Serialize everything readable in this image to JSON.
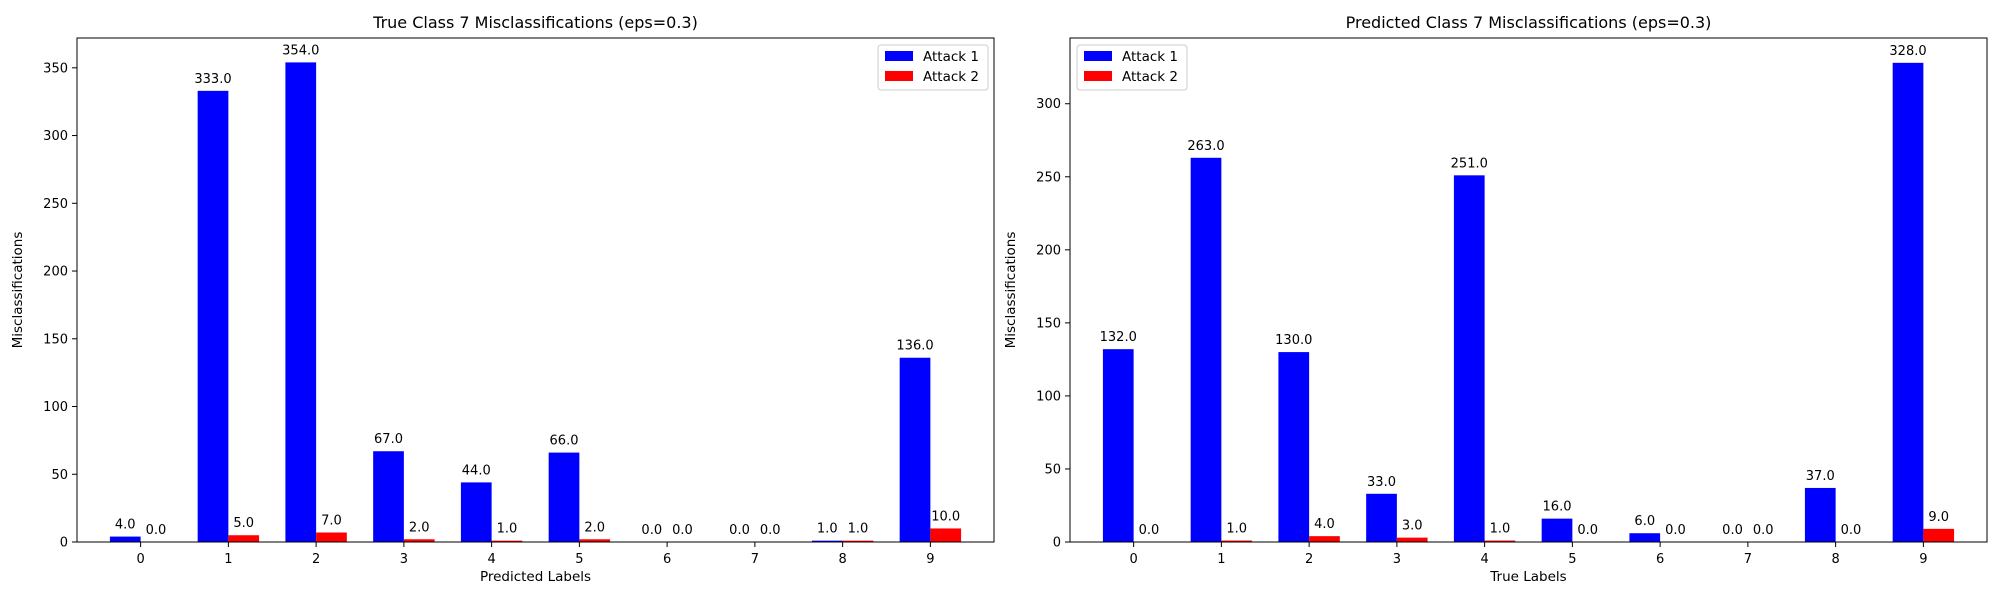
{
  "chart_data": [
    {
      "type": "bar",
      "title": "True Class 7 Misclassifications (eps=0.3)",
      "xlabel": "Predicted Labels",
      "ylabel": "Misclassifications",
      "categories": [
        "0",
        "1",
        "2",
        "3",
        "4",
        "5",
        "6",
        "7",
        "8",
        "9"
      ],
      "series": [
        {
          "name": "Attack 1",
          "color": "#0000ff",
          "values": [
            4.0,
            333.0,
            354.0,
            67.0,
            44.0,
            66.0,
            0.0,
            0.0,
            1.0,
            136.0
          ]
        },
        {
          "name": "Attack 2",
          "color": "#ff0000",
          "values": [
            0.0,
            5.0,
            7.0,
            2.0,
            1.0,
            2.0,
            0.0,
            0.0,
            1.0,
            10.0
          ]
        }
      ],
      "data_labels": [
        [
          "4.0",
          "333.0",
          "354.0",
          "67.0",
          "44.0",
          "66.0",
          "0.0",
          "0.0",
          "1.0",
          "136.0"
        ],
        [
          "0.0",
          "5.0",
          "7.0",
          "2.0",
          "1.0",
          "2.0",
          "0.0",
          "0.0",
          "1.0",
          "10.0"
        ]
      ],
      "ylim": [
        0,
        372
      ],
      "yticks": [
        0,
        50,
        100,
        150,
        200,
        250,
        300,
        350
      ],
      "grid": false,
      "legend": "upper right"
    },
    {
      "type": "bar",
      "title": "Predicted Class 7 Misclassifications (eps=0.3)",
      "xlabel": "True Labels",
      "ylabel": "Misclassifications",
      "categories": [
        "0",
        "1",
        "2",
        "3",
        "4",
        "5",
        "6",
        "7",
        "8",
        "9"
      ],
      "series": [
        {
          "name": "Attack 1",
          "color": "#0000ff",
          "values": [
            132.0,
            263.0,
            130.0,
            33.0,
            251.0,
            16.0,
            6.0,
            0.0,
            37.0,
            328.0
          ]
        },
        {
          "name": "Attack 2",
          "color": "#ff0000",
          "values": [
            0.0,
            1.0,
            4.0,
            3.0,
            1.0,
            0.0,
            0.0,
            0.0,
            0.0,
            9.0
          ]
        }
      ],
      "data_labels": [
        [
          "132.0",
          "263.0",
          "130.0",
          "33.0",
          "251.0",
          "16.0",
          "6.0",
          "0.0",
          "37.0",
          "328.0"
        ],
        [
          "0.0",
          "1.0",
          "4.0",
          "3.0",
          "1.0",
          "0.0",
          "0.0",
          "0.0",
          "0.0",
          "9.0"
        ]
      ],
      "ylim": [
        0,
        345
      ],
      "yticks": [
        0,
        50,
        100,
        150,
        200,
        250,
        300
      ],
      "grid": false,
      "legend": "upper left"
    }
  ]
}
